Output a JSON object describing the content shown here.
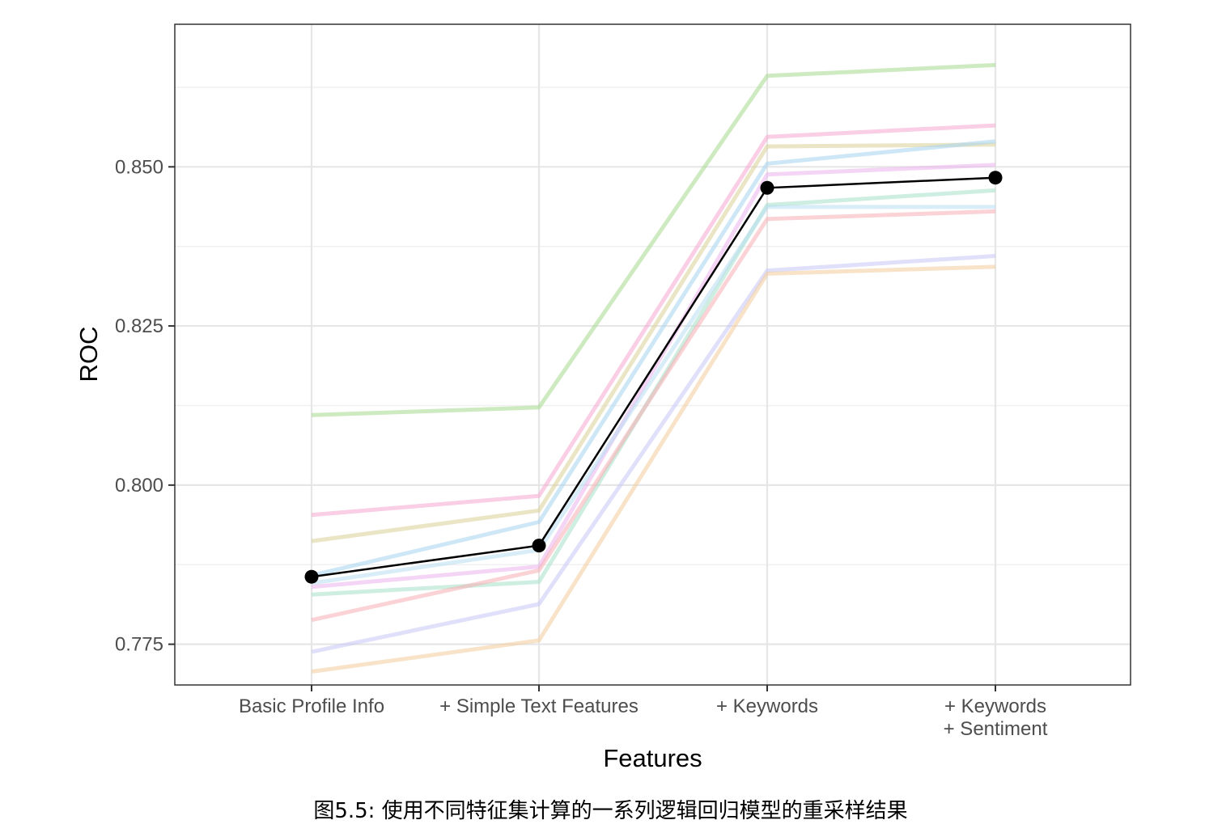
{
  "chart_data": {
    "type": "line",
    "xlabel": "Features",
    "ylabel": "ROC",
    "categories": [
      [
        "Basic Profile Info"
      ],
      [
        "+ Simple Text Features"
      ],
      [
        "+ Keywords"
      ],
      [
        "+ Keywords",
        "+ Sentiment"
      ]
    ],
    "ylim": [
      0.7686,
      0.8724
    ],
    "yticks": [
      0.775,
      0.8,
      0.825,
      0.85
    ],
    "ytick_labels": [
      "0.775",
      "0.800",
      "0.825",
      "0.850"
    ],
    "grid": true,
    "resample_series": [
      {
        "color": "#a6d98c",
        "values": [
          0.811,
          0.8122,
          0.8643,
          0.866
        ]
      },
      {
        "color": "#f5a6cf",
        "values": [
          0.7953,
          0.7983,
          0.8547,
          0.8565
        ]
      },
      {
        "color": "#d8d094",
        "values": [
          0.7912,
          0.796,
          0.8532,
          0.8535
        ]
      },
      {
        "color": "#a6d4f0",
        "values": [
          0.7858,
          0.7942,
          0.8505,
          0.854
        ]
      },
      {
        "color": "#ecb2ec",
        "values": [
          0.784,
          0.7872,
          0.8488,
          0.8503
        ]
      },
      {
        "color": "#a6e0c8",
        "values": [
          0.7828,
          0.7848,
          0.844,
          0.8463
        ]
      },
      {
        "color": "#b8dff0",
        "values": [
          0.7846,
          0.7898,
          0.8437,
          0.8437
        ]
      },
      {
        "color": "#f7aeb4",
        "values": [
          0.7788,
          0.7866,
          0.8418,
          0.843
        ]
      },
      {
        "color": "#c6c6f5",
        "values": [
          0.7738,
          0.7813,
          0.8337,
          0.836
        ]
      },
      {
        "color": "#f2cc9c",
        "values": [
          0.7707,
          0.7756,
          0.8332,
          0.8343
        ]
      }
    ],
    "mean_series": {
      "color": "#000000",
      "values": [
        0.7856,
        0.7905,
        0.8467,
        0.8483
      ]
    }
  },
  "caption": "图5.5: 使用不同特征集计算的一系列逻辑回归模型的重采样结果"
}
